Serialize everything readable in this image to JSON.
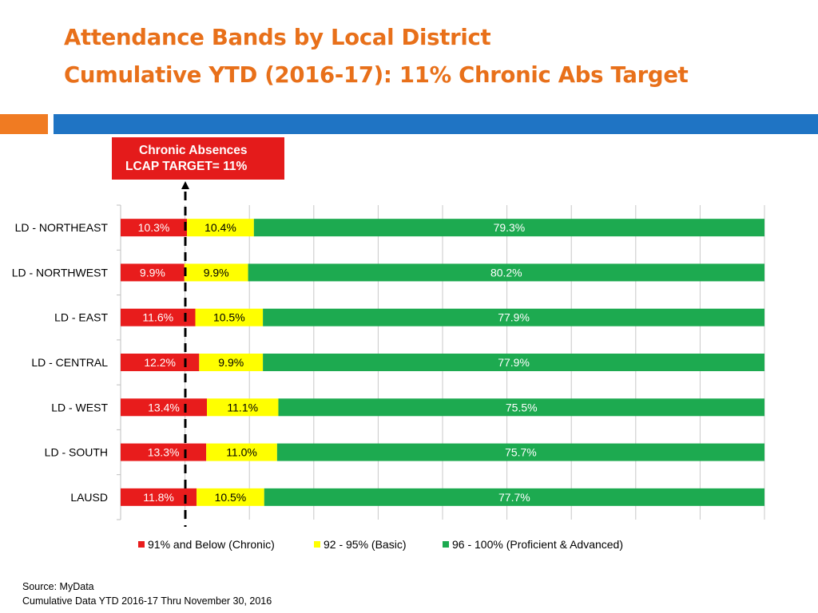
{
  "title": {
    "line1": "Attendance Bands by Local District",
    "line2": "Cumulative YTD (2016-17): 11% Chronic Abs Target"
  },
  "target_box": {
    "line1": "Chronic Absences",
    "line2": "LCAP TARGET= 11%"
  },
  "source": {
    "line1": "Source: MyData",
    "line2": "Cumulative Data  YTD 2016-17 Thru November 30, 2016"
  },
  "colors": {
    "title": "#E8701A",
    "accent_orange": "#F07B22",
    "accent_blue": "#1F74C4",
    "target_box": "#E41B1B",
    "chronic": "#E81C1C",
    "basic": "#FFFF00",
    "proficient": "#1DAA50",
    "grid": "#C8C8C8"
  },
  "chart_data": {
    "type": "bar",
    "orientation": "horizontal",
    "stacked": true,
    "categories": [
      "LD - NORTHEAST",
      "LD - NORTHWEST",
      "LD - EAST",
      "LD - CENTRAL",
      "LD - WEST",
      "LD - SOUTH",
      "LAUSD"
    ],
    "series": [
      {
        "name": "91% and Below (Chronic)",
        "color": "#E81C1C",
        "values": [
          10.3,
          9.9,
          11.6,
          12.2,
          13.4,
          13.3,
          11.8
        ],
        "labels": [
          "10.3%",
          "9.9%",
          "11.6%",
          "12.2%",
          "13.4%",
          "13.3%",
          "11.8%"
        ]
      },
      {
        "name": "92 - 95% (Basic)",
        "color": "#FFFF00",
        "values": [
          10.4,
          9.9,
          10.5,
          9.9,
          11.1,
          11.0,
          10.5
        ],
        "labels": [
          "10.4%",
          "9.9%",
          "10.5%",
          "9.9%",
          "11.1%",
          "11.0%",
          "10.5%"
        ]
      },
      {
        "name": "96 - 100% (Proficient & Advanced)",
        "color": "#1DAA50",
        "values": [
          79.3,
          80.2,
          77.9,
          77.9,
          75.5,
          75.7,
          77.7
        ],
        "labels": [
          "79.3%",
          "80.2%",
          "77.9%",
          "77.9%",
          "75.5%",
          "75.7%",
          "77.7%"
        ]
      }
    ],
    "xlim": [
      0,
      100
    ],
    "target_line": 11,
    "grid": true,
    "legend": "bottom"
  }
}
